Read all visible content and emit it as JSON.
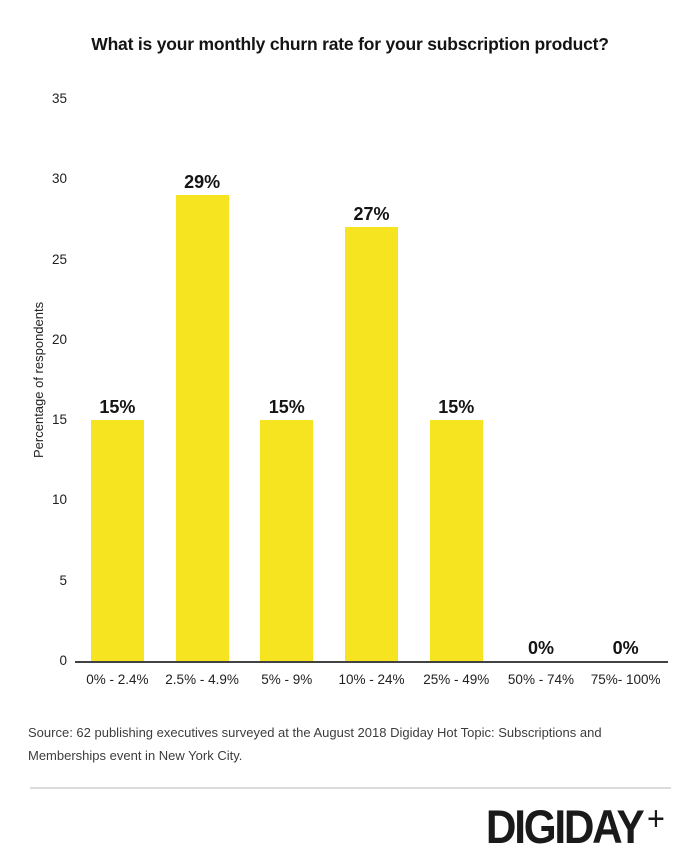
{
  "chart_data": {
    "type": "bar",
    "title": "What is your monthly churn rate for your subscription product?",
    "categories": [
      "0% - 2.4%",
      "2.5% - 4.9%",
      "5% - 9%",
      "10% - 24%",
      "25% - 49%",
      "50% - 74%",
      "75%- 100%"
    ],
    "values": [
      15,
      29,
      15,
      27,
      15,
      0,
      0
    ],
    "value_labels": [
      "15%",
      "29%",
      "15%",
      "27%",
      "15%",
      "0%",
      "0%"
    ],
    "xlabel": "",
    "ylabel": "Percentage of respondents",
    "ylim": [
      0,
      35
    ],
    "yticks": [
      0,
      5,
      10,
      15,
      20,
      25,
      30,
      35
    ],
    "grid": false,
    "legend": "none",
    "bar_color": "#f6e421"
  },
  "source": {
    "text": "Source: 62 publishing executives surveyed at the August 2018 Digiday Hot Topic: Subscriptions and Memberships event in New York City."
  },
  "footer": {
    "logo_text": "DIGIDAY",
    "logo_plus": "+"
  },
  "colors": {
    "background": "#ffffff",
    "bar": "#f6e421",
    "axis_line": "#424242",
    "title_text": "#141414",
    "tick_text": "#212121",
    "source_text": "#3d3d3d",
    "divider": "#dcdcdc",
    "logo_text": "#1a1a1a"
  }
}
